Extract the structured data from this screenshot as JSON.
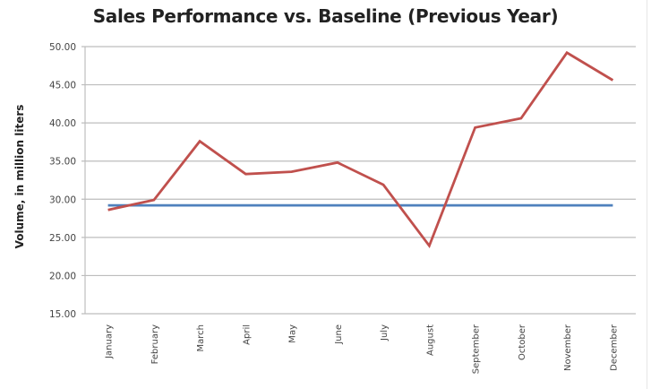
{
  "chart_data": {
    "type": "line",
    "title": "Sales Performance vs. Baseline (Previous Year)",
    "xlabel": "",
    "ylabel": "Volume, in million liters",
    "ylim": [
      15,
      50
    ],
    "yticks": [
      "15.00",
      "20.00",
      "25.00",
      "30.00",
      "35.00",
      "40.00",
      "45.00",
      "50.00"
    ],
    "grid": true,
    "legend": "none",
    "categories": [
      "January",
      "February",
      "March",
      "April",
      "May",
      "June",
      "July",
      "August",
      "September",
      "October",
      "November",
      "December"
    ],
    "series": [
      {
        "name": "Sales",
        "color": "#c0504d",
        "values": [
          28.6,
          29.9,
          37.6,
          33.3,
          33.6,
          34.8,
          31.9,
          23.9,
          39.4,
          40.6,
          49.2,
          45.6
        ]
      },
      {
        "name": "Baseline (Previous Year)",
        "color": "#4f81bd",
        "values": [
          29.2,
          29.2,
          29.2,
          29.2,
          29.2,
          29.2,
          29.2,
          29.2,
          29.2,
          29.2,
          29.2,
          29.2
        ]
      }
    ]
  }
}
